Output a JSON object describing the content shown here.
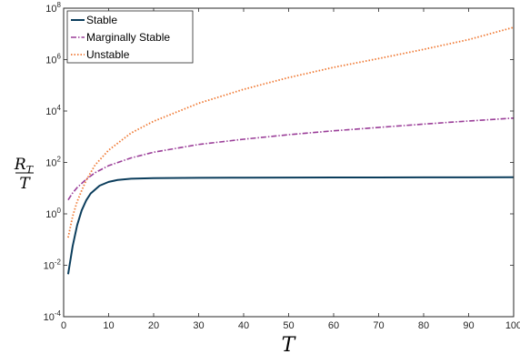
{
  "chart_data": {
    "type": "line",
    "xlabel": "T",
    "ylabel": {
      "numerator": "R",
      "numerator_subscript": "T",
      "denominator": "T"
    },
    "xlim": [
      0,
      100
    ],
    "ylim": [
      0.0001,
      100000000
    ],
    "yscale": "log",
    "grid": false,
    "legend_position": "top-left",
    "x_ticks": [
      "0",
      "10",
      "20",
      "30",
      "40",
      "50",
      "60",
      "70",
      "80",
      "90",
      "100"
    ],
    "y_ticks": [
      {
        "base": "10",
        "exp": "-4"
      },
      {
        "base": "10",
        "exp": "-2"
      },
      {
        "base": "10",
        "exp": "0"
      },
      {
        "base": "10",
        "exp": "2"
      },
      {
        "base": "10",
        "exp": "4"
      },
      {
        "base": "10",
        "exp": "6"
      },
      {
        "base": "10",
        "exp": "8"
      }
    ],
    "series": [
      {
        "name": "Stable",
        "color": "#0b3d5c",
        "dash": "solid",
        "x": [
          1,
          2,
          3,
          4,
          5,
          6,
          8,
          10,
          12,
          15,
          20,
          30,
          40,
          50,
          60,
          70,
          80,
          90,
          100
        ],
        "y": [
          0.0045,
          0.055,
          0.36,
          1.35,
          3.3,
          6.2,
          12.5,
          17.5,
          20.8,
          23.2,
          24.6,
          25.3,
          25.6,
          25.8,
          26,
          26.1,
          26.3,
          26.4,
          26.5
        ]
      },
      {
        "name": "Marginally Stable",
        "color": "#9b3f99",
        "dash": "dashdot",
        "x": [
          1,
          2,
          3,
          5,
          7,
          10,
          15,
          20,
          30,
          40,
          50,
          60,
          70,
          80,
          90,
          100
        ],
        "y": [
          3.5,
          6.5,
          10.5,
          22,
          40,
          75,
          150,
          250,
          500,
          800,
          1200,
          1700,
          2300,
          3100,
          4100,
          5300
        ]
      },
      {
        "name": "Unstable",
        "color": "#f07a35",
        "dash": "dotted",
        "x": [
          1,
          2,
          3,
          4,
          5,
          7,
          10,
          15,
          20,
          30,
          40,
          50,
          60,
          70,
          80,
          90,
          100
        ],
        "y": [
          0.12,
          0.8,
          3,
          8,
          20,
          80,
          300,
          1400,
          4000,
          20000,
          70000,
          200000,
          500000,
          1100000,
          2500000,
          6000000,
          18000000
        ]
      }
    ]
  }
}
